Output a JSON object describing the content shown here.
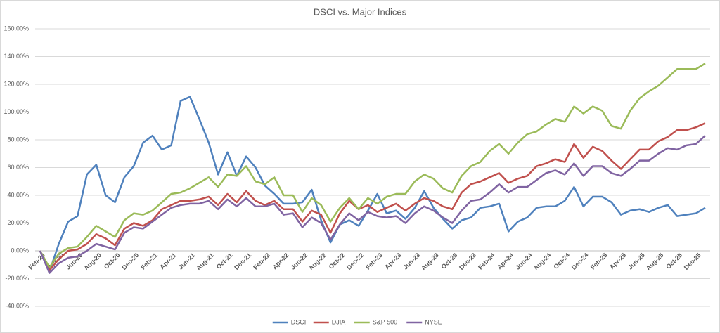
{
  "chart_data": {
    "type": "line",
    "title": "DSCI vs. Major Indices",
    "categories": [
      "Feb-20",
      null,
      "Apr-20",
      null,
      "Jun-20",
      null,
      "Aug-20",
      null,
      "Oct-20",
      null,
      "Dec-20",
      null,
      "Feb-21",
      null,
      "Apr-21",
      null,
      "Jun-21",
      null,
      "Aug-21",
      null,
      "Oct-21",
      null,
      "Dec-21",
      null,
      "Feb-22",
      null,
      "Apr-22",
      null,
      "Jun-22",
      null,
      "Aug-22",
      null,
      "Oct-22",
      null,
      "Dec-22",
      null,
      "Feb-23",
      null,
      "Apr-23",
      null,
      "Jun-23",
      null,
      "Aug-23",
      null,
      "Oct-23",
      null,
      "Dec-23",
      null,
      "Feb-24",
      null,
      "Apr-24",
      null,
      "Jun-24",
      null,
      "Aug-24",
      null,
      "Oct-24",
      null,
      "Dec-24",
      null,
      "Feb-25",
      null,
      "Apr-25",
      null,
      "Jun-25",
      null,
      "Aug-25",
      null,
      "Oct-25",
      null,
      "Dec-25",
      null
    ],
    "series": [
      {
        "name": "DSCI",
        "color": "#4f81bd",
        "values": [
          0,
          -15,
          5,
          21,
          25,
          55,
          62,
          40,
          35,
          53,
          61,
          78,
          83,
          73,
          76,
          108,
          111,
          95,
          78,
          55,
          71,
          54,
          68,
          60,
          47,
          41,
          34,
          34,
          35,
          44,
          22,
          6,
          19,
          22,
          18,
          29,
          41,
          27,
          29,
          23,
          31,
          43,
          31,
          23,
          16,
          22,
          24,
          31,
          32,
          34,
          14,
          21,
          24,
          31,
          32,
          32,
          36,
          46,
          32,
          39,
          39,
          35,
          26,
          29,
          30,
          28,
          31,
          33,
          25,
          26,
          27,
          31
        ]
      },
      {
        "name": "DJIA",
        "color": "#c0504d",
        "values": [
          0,
          -14,
          -6,
          0,
          1,
          5,
          12,
          9,
          4,
          16,
          20,
          18,
          22,
          30,
          33,
          36,
          36,
          37,
          39,
          33,
          41,
          35,
          43,
          36,
          33,
          36,
          30,
          30,
          21,
          29,
          26,
          13,
          27,
          36,
          30,
          33,
          28,
          31,
          34,
          29,
          34,
          38,
          36,
          32,
          30,
          42,
          48,
          50,
          53,
          56,
          49,
          52,
          54,
          61,
          63,
          66,
          64,
          77,
          67,
          75,
          72,
          65,
          59,
          66,
          73,
          73,
          79,
          82,
          87,
          87,
          89,
          92
        ]
      },
      {
        "name": "S&P 500",
        "color": "#9bbb59",
        "values": [
          0,
          -12,
          -2,
          2,
          3,
          10,
          18,
          14,
          10,
          22,
          27,
          26,
          29,
          35,
          41,
          42,
          45,
          49,
          53,
          46,
          55,
          54,
          61,
          50,
          48,
          53,
          40,
          40,
          28,
          38,
          33,
          21,
          31,
          38,
          30,
          38,
          34,
          39,
          41,
          41,
          50,
          55,
          52,
          45,
          42,
          54,
          61,
          64,
          72,
          77,
          70,
          78,
          84,
          86,
          91,
          95,
          93,
          104,
          99,
          104,
          101,
          90,
          88,
          101,
          110,
          115,
          119,
          125,
          131,
          131,
          131,
          135
        ]
      },
      {
        "name": "NYSE",
        "color": "#8064a2",
        "values": [
          0,
          -16,
          -9,
          -5,
          -4,
          0,
          5,
          3,
          1,
          13,
          17,
          16,
          21,
          26,
          31,
          33,
          34,
          34,
          36,
          30,
          37,
          32,
          38,
          32,
          32,
          34,
          26,
          27,
          17,
          24,
          20,
          8,
          19,
          27,
          22,
          28,
          25,
          24,
          25,
          20,
          27,
          32,
          29,
          24,
          20,
          29,
          36,
          37,
          42,
          48,
          42,
          46,
          46,
          51,
          56,
          58,
          55,
          63,
          54,
          61,
          61,
          56,
          54,
          59,
          65,
          65,
          70,
          74,
          73,
          76,
          77,
          83
        ]
      }
    ],
    "ylim": [
      -40,
      160
    ],
    "yticks": [
      {
        "value": -40,
        "label": "-40.00%"
      },
      {
        "value": -20,
        "label": "-20.00%"
      },
      {
        "value": 0,
        "label": "0.00%"
      },
      {
        "value": 20,
        "label": "20.00%"
      },
      {
        "value": 40,
        "label": "40.00%"
      },
      {
        "value": 60,
        "label": "60.00%"
      },
      {
        "value": 80,
        "label": "80.00%"
      },
      {
        "value": 100,
        "label": "100.00%"
      },
      {
        "value": 120,
        "label": "120.00%"
      },
      {
        "value": 140,
        "label": "140.00%"
      },
      {
        "value": 160,
        "label": "160.00%"
      }
    ],
    "grid": true,
    "legend": "bottom"
  }
}
